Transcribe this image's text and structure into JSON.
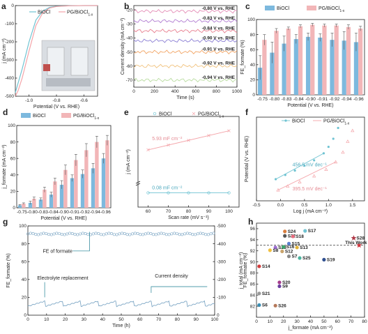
{
  "panels": {
    "a": "a",
    "b": "b",
    "c": "c",
    "d": "d",
    "e": "e",
    "f": "f",
    "g": "g",
    "h": "h"
  },
  "colors": {
    "bioc": "#6fc3d2",
    "pg": "#f4a3a8",
    "pg_dark": "#e58a93",
    "blue_bar": "#7db9de",
    "pink_bar": "#f2b6b8"
  },
  "chart_data": [
    {
      "id": "a",
      "type": "line",
      "xlabel": "Potential (V vs. RHE)",
      "ylabel": "j (mA cm⁻²)",
      "xlim": [
        -1.1,
        -0.5
      ],
      "ylim": [
        -500,
        0
      ],
      "xticks": [
        "-1.0",
        "-0.8",
        "-0.6"
      ],
      "yticks": [
        "0",
        "-100",
        "-200",
        "-300",
        "-400",
        "-500"
      ],
      "series": [
        {
          "name": "BiOCl",
          "color": "#6fc3d2",
          "points": [
            [
              -1.1,
              -480
            ],
            [
              -1.05,
              -350
            ],
            [
              -1.0,
              -200
            ],
            [
              -0.95,
              -80
            ],
            [
              -0.9,
              -30
            ],
            [
              -0.85,
              -10
            ],
            [
              -0.8,
              -4
            ],
            [
              -0.7,
              -1
            ],
            [
              -0.6,
              0
            ],
            [
              -0.5,
              0
            ]
          ]
        },
        {
          "name": "PG/BiOCl",
          "legend_sub": "1-x",
          "color": "#f4a3a8",
          "points": [
            [
              -1.1,
              -500
            ],
            [
              -1.08,
              -470
            ],
            [
              -1.05,
              -400
            ],
            [
              -1.0,
              -250
            ],
            [
              -0.95,
              -110
            ],
            [
              -0.9,
              -40
            ],
            [
              -0.85,
              -14
            ],
            [
              -0.8,
              -5
            ],
            [
              -0.7,
              -1
            ],
            [
              -0.6,
              0
            ],
            [
              -0.5,
              0
            ]
          ]
        }
      ]
    },
    {
      "id": "b",
      "type": "line",
      "xlabel": "Time (s)",
      "ylabel": "Current density (mA cm⁻²)",
      "xlim": [
        0,
        1000
      ],
      "ylim": [
        -75,
        -17
      ],
      "xticks": [
        "0",
        "200",
        "400",
        "600",
        "800",
        "1000"
      ],
      "yticks": [
        "-20",
        "-30",
        "-40",
        "-50",
        "-60",
        "-70"
      ],
      "series": [
        {
          "label": "-0.80 V vs. RHE",
          "level": -21,
          "color": "#e58fb8"
        },
        {
          "label": "-0.83 V vs. RHE",
          "level": -28,
          "color": "#b07bd1"
        },
        {
          "label": "-0.84 V vs. RHE",
          "level": -35,
          "color": "#e87e8e"
        },
        {
          "label": "-0.90 V vs. RHE",
          "level": -42,
          "color": "#8b7fd4"
        },
        {
          "label": "-0.91 V vs. RHE",
          "level": -50,
          "color": "#f2a463"
        },
        {
          "label": "-0.92 V vs. RHE",
          "level": -60,
          "color": "#f1c27d"
        },
        {
          "label": "-0.94 V vs. RHE",
          "level": -70,
          "color": "#b9dca0"
        }
      ]
    },
    {
      "id": "c",
      "type": "bar",
      "xlabel": "Potential (V vs. RHE)",
      "ylabel": "FE_formate (%)",
      "ylim": [
        0,
        100
      ],
      "yticks": [
        "0",
        "20",
        "40",
        "60",
        "80",
        "100"
      ],
      "categories": [
        "-0.75",
        "-0.80",
        "-0.83",
        "-0.84",
        "-0.90",
        "-0.91",
        "-0.92",
        "-0.94",
        "-0.96"
      ],
      "series": [
        {
          "name": "BiOCl",
          "values": [
            36,
            56,
            68,
            74,
            77,
            76,
            73,
            72,
            70
          ],
          "err": [
            16,
            14,
            10,
            6,
            5,
            5,
            9,
            12,
            12
          ]
        },
        {
          "name": "PG/BiOCl",
          "legend_sub": "1-x",
          "values": [
            73,
            85,
            88,
            91,
            93,
            92,
            92,
            90,
            88
          ],
          "err": [
            7,
            3,
            2,
            2,
            2,
            2,
            2,
            3,
            3
          ]
        }
      ]
    },
    {
      "id": "d",
      "type": "bar",
      "xlabel": "Potential (V vs. RHE)",
      "ylabel": "j_formate (mA cm⁻²)",
      "ylim": [
        0,
        100
      ],
      "yticks": [
        "0",
        "20",
        "40",
        "60",
        "80",
        "100"
      ],
      "categories": [
        "-0.75",
        "-0.80",
        "-0.83",
        "-0.84",
        "-0.90",
        "-0.91",
        "-0.92",
        "-0.94",
        "-0.96"
      ],
      "series": [
        {
          "name": "BiOCl",
          "values": [
            3,
            6,
            10,
            16,
            28,
            36,
            41,
            48,
            60
          ],
          "err": [
            1,
            2,
            2,
            3,
            5,
            4,
            5,
            6,
            6
          ]
        },
        {
          "name": "PG/BiOCl",
          "legend_sub": "1-x",
          "values": [
            5,
            11,
            22,
            32,
            46,
            58,
            70,
            80,
            82
          ],
          "err": [
            1,
            2,
            3,
            4,
            6,
            7,
            8,
            7,
            6
          ]
        }
      ]
    },
    {
      "id": "e",
      "type": "scatter",
      "xlabel": "Scan rate (mV s⁻¹)",
      "ylabel": "j (mA cm⁻²)",
      "xlim": [
        55,
        105
      ],
      "xticks": [
        "60",
        "70",
        "80",
        "90",
        "100"
      ],
      "series": [
        {
          "name": "BiOCl",
          "annotation": "0.08 mF cm⁻²",
          "x": [
            60,
            70,
            80,
            90,
            100
          ],
          "y": [
            0.1,
            0.1,
            0.1,
            0.1,
            0.1
          ]
        },
        {
          "name": "PG/BiOCl",
          "legend_sub": "1-x",
          "annotation": "5.93 mF cm⁻²",
          "x": [
            60,
            70,
            80,
            90,
            100
          ],
          "y": [
            0.55,
            0.6,
            0.65,
            0.7,
            0.75
          ]
        }
      ]
    },
    {
      "id": "f",
      "type": "scatter",
      "xlabel": "Log j (mA cm⁻²)",
      "ylabel": "Potential (V vs. RHE)",
      "xlim": [
        -0.5,
        1.75
      ],
      "xticks": [
        "-0.5",
        "0.0",
        "0.5",
        "1.0",
        "1.5"
      ],
      "series": [
        {
          "name": "BiOCl",
          "annotation": "456.5 mV dec⁻¹",
          "x": [
            -0.1,
            0.1,
            0.3,
            0.5,
            0.7,
            0.9,
            1.0,
            1.1,
            1.2
          ],
          "y": [
            0.3,
            0.38,
            0.46,
            0.55,
            0.65,
            0.78,
            0.9,
            1.05,
            1.25
          ]
        },
        {
          "name": "PG/BiOCl",
          "legend_sub": "1-x",
          "annotation": "395.5 mV dec⁻¹",
          "x": [
            -0.05,
            0.15,
            0.4,
            0.7,
            0.95,
            1.15,
            1.3,
            1.4,
            1.5
          ],
          "y": [
            0.1,
            0.17,
            0.25,
            0.36,
            0.48,
            0.62,
            0.8,
            1.0,
            1.2
          ]
        }
      ]
    },
    {
      "id": "g",
      "type": "line",
      "xlabel": "Time (h)",
      "ylabel": "FE_formate (%)",
      "ylabel_right": "j_total (mA cm⁻²)",
      "xlim": [
        0,
        100
      ],
      "ylim": [
        0,
        100
      ],
      "xticks": [
        "0",
        "10",
        "20",
        "30",
        "40",
        "50",
        "60",
        "70",
        "80",
        "90",
        "100"
      ],
      "yticks": [
        "0",
        "20",
        "40",
        "60",
        "80",
        "100"
      ],
      "yticks_right": [
        "0",
        "-100",
        "-200",
        "-300",
        "-400",
        "-500"
      ],
      "annotations": {
        "fe": "FE of formate",
        "replace": "Electrolyte replacement",
        "cd": "Current density"
      },
      "series": [
        {
          "name": "FE of formate",
          "level": 91
        },
        {
          "name": "Current density",
          "level": 14
        }
      ]
    },
    {
      "id": "h",
      "type": "scatter",
      "xlabel": "j_formate (mA cm⁻²)",
      "ylabel": "FE_formate (%)",
      "xlim": [
        0,
        80
      ],
      "ylim": [
        80,
        97
      ],
      "xticks": [
        "0",
        "10",
        "20",
        "30",
        "40",
        "50",
        "60",
        "70",
        "80"
      ],
      "yticks": [
        "82",
        "84",
        "86",
        "88",
        "90",
        "92",
        "94",
        "96"
      ],
      "reference_y": 93,
      "points": [
        {
          "label": "S24",
          "x": 21,
          "y": 95.5,
          "color": "#d97e3f"
        },
        {
          "label": "S17",
          "x": 36,
          "y": 95.6,
          "color": "#6fc3d2"
        },
        {
          "label": "S22",
          "x": 21,
          "y": 94.7,
          "color": "#555555"
        },
        {
          "label": "S18",
          "x": 27,
          "y": 94.6,
          "color": "#e86a7c"
        },
        {
          "label": "S28",
          "x": 72,
          "y": 94.3,
          "color": "#b03a48"
        },
        {
          "label": "This Work",
          "x": 76,
          "y": 93.0,
          "color": "#d0343c"
        },
        {
          "label": "S15",
          "x": 24,
          "y": 93.3,
          "color": "#5a7fd1"
        },
        {
          "label": "S23",
          "x": 14,
          "y": 92.6,
          "color": "#9b6bd0"
        },
        {
          "label": "S16",
          "x": 20,
          "y": 92.7,
          "color": "#3aa76d"
        },
        {
          "label": "S13",
          "x": 30,
          "y": 92.6,
          "color": "#e0b33a"
        },
        {
          "label": "S8",
          "x": 10,
          "y": 92.1,
          "color": "#f0c040"
        },
        {
          "label": "S12",
          "x": 19,
          "y": 91.9,
          "color": "#c9a46d"
        },
        {
          "label": "S7",
          "x": 24,
          "y": 91.0,
          "color": "#8a8a8a"
        },
        {
          "label": "S25",
          "x": 32,
          "y": 90.7,
          "color": "#4bb39f"
        },
        {
          "label": "S19",
          "x": 50,
          "y": 90.4,
          "color": "#2f4f8f"
        },
        {
          "label": "S14",
          "x": 2,
          "y": 89.2,
          "color": "#d23b3b"
        },
        {
          "label": "S20",
          "x": 17,
          "y": 86.3,
          "color": "#a53c8c"
        },
        {
          "label": "S9",
          "x": 17,
          "y": 85.6,
          "color": "#6b3fa0"
        },
        {
          "label": "S21",
          "x": 2,
          "y": 84.3,
          "color": "#999999"
        },
        {
          "label": "S6",
          "x": 2,
          "y": 82.2,
          "color": "#3a8fb5"
        },
        {
          "label": "S26",
          "x": 14,
          "y": 82.1,
          "color": "#b5795a"
        }
      ]
    }
  ]
}
